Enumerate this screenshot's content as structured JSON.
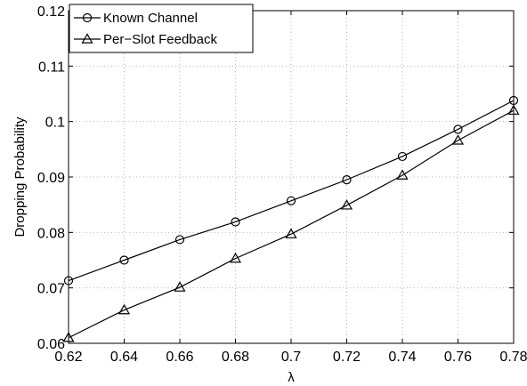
{
  "chart_data": {
    "type": "line",
    "title": "",
    "xlabel": "λ",
    "ylabel": "Dropping Probability",
    "x": [
      0.62,
      0.64,
      0.66,
      0.68,
      0.7,
      0.72,
      0.74,
      0.76,
      0.78
    ],
    "x_tick_labels": [
      "0.62",
      "0.64",
      "0.66",
      "0.68",
      "0.7",
      "0.72",
      "0.74",
      "0.76",
      "0.78"
    ],
    "y_tick_values": [
      0.06,
      0.07,
      0.08,
      0.09,
      0.1,
      0.11,
      0.12
    ],
    "y_tick_labels": [
      "0.06",
      "0.07",
      "0.08",
      "0.09",
      "0.1",
      "0.11",
      "0.12"
    ],
    "xlim": [
      0.62,
      0.78
    ],
    "ylim": [
      0.06,
      0.12
    ],
    "grid": true,
    "legend_position": "top-left",
    "series": [
      {
        "name": "Known Channel",
        "marker": "circle",
        "color": "#000000",
        "values": [
          0.0713,
          0.075,
          0.0787,
          0.0819,
          0.0857,
          0.0895,
          0.0937,
          0.0986,
          0.1038
        ]
      },
      {
        "name": "Per−Slot Feedback",
        "marker": "triangle",
        "color": "#000000",
        "values": [
          0.061,
          0.066,
          0.0701,
          0.0753,
          0.0797,
          0.0849,
          0.0903,
          0.0966,
          0.102
        ]
      }
    ]
  }
}
